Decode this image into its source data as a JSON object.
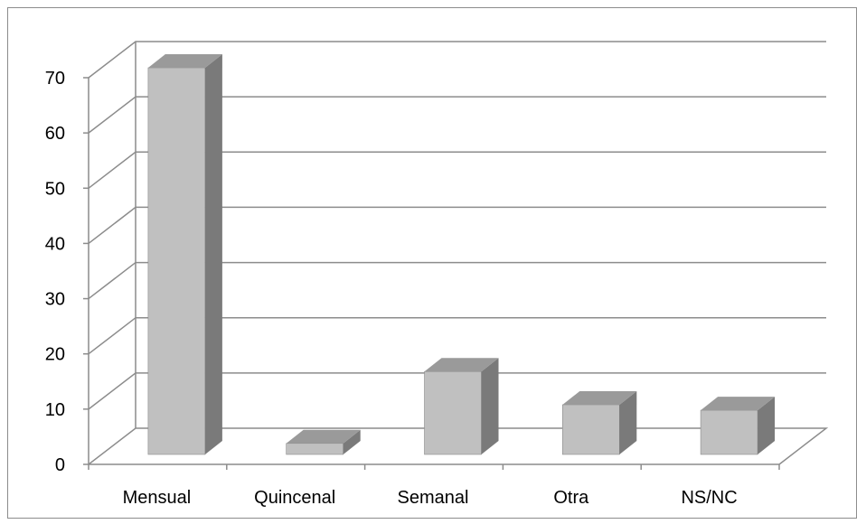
{
  "chart_data": {
    "type": "bar",
    "categories": [
      "Mensual",
      "Quincenal",
      "Semanal",
      "Otra",
      "NS/NC"
    ],
    "values": [
      70,
      2,
      15,
      9,
      8
    ],
    "title": "",
    "xlabel": "",
    "ylabel": "",
    "ylim": [
      0,
      70
    ],
    "yticks": [
      "0",
      "10",
      "20",
      "30",
      "40",
      "50",
      "60",
      "70"
    ],
    "grid": true,
    "legend": "none",
    "style": "3d-column",
    "colors": {
      "bar_front": "#c0c0c0",
      "bar_side": "#7a7a7a",
      "bar_top": "#9a9a9a",
      "grid": "#8c8c8c",
      "axis": "#8c8c8c"
    }
  }
}
